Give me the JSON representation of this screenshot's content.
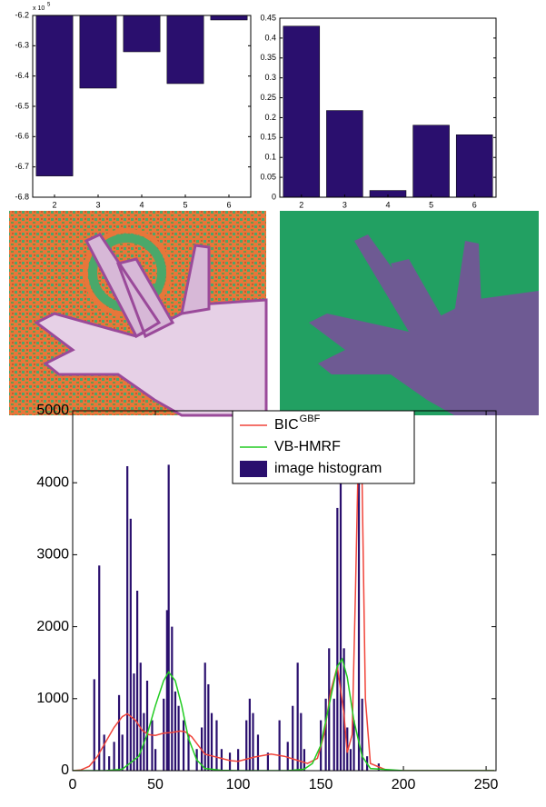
{
  "chart_data": [
    {
      "type": "bar",
      "categories": [
        "2",
        "3",
        "4",
        "5",
        "6"
      ],
      "values": [
        -6.73,
        -6.44,
        -6.32,
        -6.425,
        -6.215
      ],
      "color": "#2a0f6e",
      "ylim": [
        -6.8,
        -6.2
      ],
      "yticks": [
        -6.8,
        -6.7,
        -6.6,
        -6.5,
        -6.4,
        -6.3,
        -6.2
      ],
      "y_multiplier": "x 10",
      "y_multiplier_exponent": "5"
    },
    {
      "type": "bar",
      "categories": [
        "2",
        "3",
        "4",
        "5",
        "6"
      ],
      "values": [
        0.43,
        0.218,
        0.017,
        0.181,
        0.157
      ],
      "color": "#2a0f6e",
      "ylim": [
        0,
        0.45
      ],
      "yticks": [
        0,
        0.05,
        0.1,
        0.15,
        0.2,
        0.25,
        0.3,
        0.35,
        0.4,
        0.45
      ]
    },
    {
      "type": "histogram",
      "xlim": [
        0,
        256
      ],
      "xticks": [
        0,
        50,
        100,
        150,
        200,
        250
      ],
      "ylim": [
        0,
        5000
      ],
      "yticks": [
        0,
        1000,
        2000,
        3000,
        4000,
        5000
      ],
      "legend": "top",
      "series": [
        {
          "name": "BIC",
          "name_superscript": "GBF",
          "type": "line",
          "color": "#f0443a",
          "x": [
            0,
            5,
            10,
            15,
            20,
            25,
            30,
            33,
            38,
            42,
            46,
            50,
            55,
            60,
            65,
            68,
            72,
            76,
            80,
            85,
            90,
            95,
            100,
            110,
            120,
            128,
            135,
            142,
            148,
            152,
            156,
            160,
            164,
            166,
            169,
            171,
            173,
            174,
            175,
            177,
            180,
            190,
            200,
            255
          ],
          "values": [
            0,
            10,
            60,
            200,
            400,
            600,
            750,
            790,
            700,
            560,
            500,
            490,
            520,
            530,
            550,
            540,
            470,
            350,
            230,
            200,
            170,
            140,
            130,
            190,
            230,
            200,
            150,
            100,
            170,
            500,
            1100,
            1450,
            800,
            250,
            500,
            2500,
            4700,
            5000,
            4000,
            1000,
            100,
            5,
            0,
            0
          ]
        },
        {
          "name": "VB-HMRF",
          "type": "line",
          "color": "#22cc22",
          "x": [
            0,
            20,
            30,
            40,
            45,
            50,
            55,
            58,
            62,
            66,
            70,
            75,
            80,
            90,
            100,
            130,
            140,
            145,
            150,
            155,
            160,
            163,
            166,
            170,
            175,
            180,
            200,
            255
          ],
          "values": [
            0,
            0,
            20,
            200,
            500,
            900,
            1250,
            1370,
            1250,
            900,
            450,
            150,
            30,
            5,
            0,
            0,
            20,
            100,
            350,
            900,
            1450,
            1550,
            1300,
            700,
            200,
            30,
            0,
            0
          ]
        },
        {
          "name": "image histogram",
          "type": "bar",
          "color": "#2a0f6e",
          "x": [
            13,
            16,
            19,
            22,
            25,
            28,
            30,
            33,
            35,
            37,
            39,
            41,
            43,
            45,
            48,
            50,
            55,
            57,
            58,
            60,
            62,
            64,
            67,
            70,
            75,
            78,
            80,
            82,
            84,
            87,
            90,
            95,
            100,
            105,
            107,
            109,
            112,
            118,
            125,
            130,
            133,
            136,
            138,
            140,
            150,
            153,
            155,
            158,
            160,
            162,
            164,
            166,
            168,
            170,
            173,
            175,
            178,
            185
          ],
          "values": [
            1270,
            2850,
            500,
            200,
            400,
            1050,
            500,
            4230,
            3500,
            1350,
            2500,
            1500,
            800,
            1250,
            700,
            300,
            1000,
            2230,
            4250,
            2000,
            1100,
            900,
            700,
            500,
            300,
            600,
            1500,
            1200,
            800,
            700,
            300,
            250,
            300,
            700,
            1000,
            800,
            500,
            250,
            700,
            400,
            900,
            1500,
            800,
            300,
            700,
            1000,
            1700,
            1000,
            3650,
            4050,
            1700,
            600,
            300,
            700,
            4950,
            1000,
            200,
            100
          ]
        }
      ]
    }
  ]
}
